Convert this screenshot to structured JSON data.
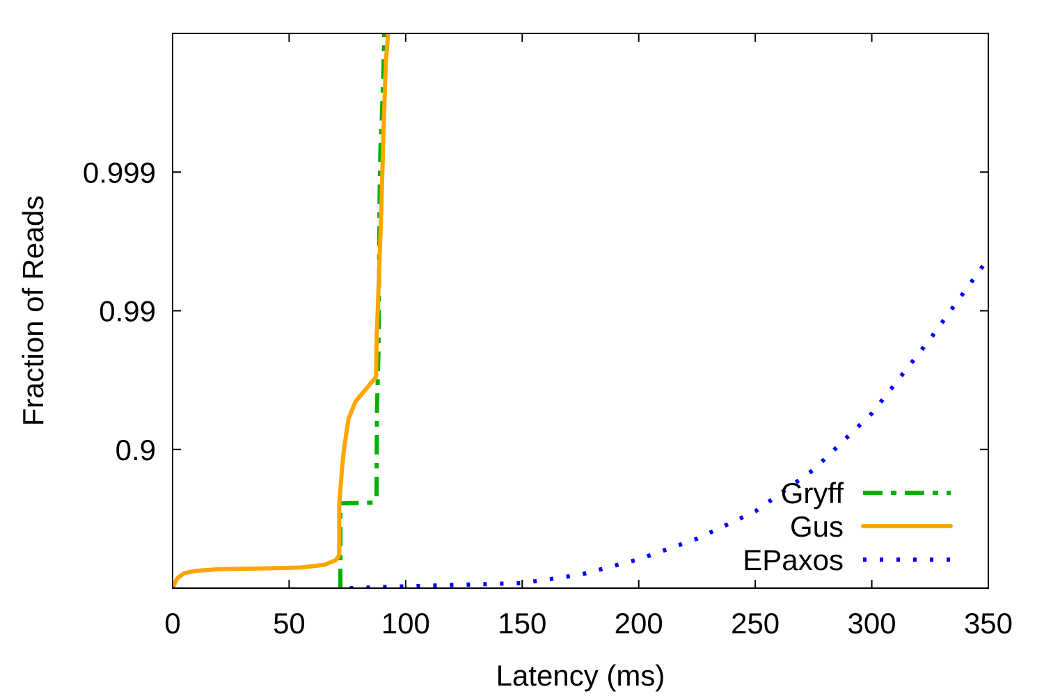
{
  "chart_data": {
    "type": "line",
    "xlabel": "Latency (ms)",
    "ylabel": "Fraction of Reads",
    "xlim": [
      0,
      350
    ],
    "y_scale": "log(1 - y) (tail CDF)",
    "ylim": [
      0.0,
      0.9999
    ],
    "x_ticks": [
      "0",
      "50",
      "100",
      "150",
      "200",
      "250",
      "300",
      "350"
    ],
    "y_ticks": [
      {
        "value": 0.9,
        "label": "0.9"
      },
      {
        "value": 0.99,
        "label": "0.99"
      },
      {
        "value": 0.999,
        "label": "0.999"
      }
    ],
    "grid": false,
    "legend_position": "bottom-right",
    "series": [
      {
        "name": "Gryff",
        "color": "#00b000",
        "style": "dash-dot",
        "points": [
          [
            72,
            0.0
          ],
          [
            72,
            0.5
          ],
          [
            72,
            0.755
          ],
          [
            86,
            0.758
          ],
          [
            87.5,
            0.77
          ],
          [
            87.6,
            0.9
          ],
          [
            87.7,
            0.95
          ],
          [
            88.3,
            0.98
          ],
          [
            88.5,
            0.99
          ],
          [
            88.8,
            0.9985
          ],
          [
            89,
            0.99905
          ],
          [
            89.2,
            0.99935
          ],
          [
            89.6,
            0.9995
          ],
          [
            90.5,
            0.99982
          ],
          [
            90.8,
            0.9999
          ]
        ]
      },
      {
        "name": "Gus",
        "color": "#ffa500",
        "style": "solid",
        "points": [
          [
            0,
            0.0
          ],
          [
            2,
            0.15
          ],
          [
            5,
            0.22
          ],
          [
            10,
            0.25
          ],
          [
            20,
            0.27
          ],
          [
            40,
            0.28
          ],
          [
            55,
            0.29
          ],
          [
            65,
            0.32
          ],
          [
            70,
            0.37
          ],
          [
            71.5,
            0.42
          ],
          [
            71.5,
            0.75
          ],
          [
            72.5,
            0.85
          ],
          [
            73.5,
            0.9
          ],
          [
            75.5,
            0.94
          ],
          [
            78.5,
            0.955
          ],
          [
            84,
            0.965
          ],
          [
            87.3,
            0.97
          ],
          [
            87.6,
            0.985
          ],
          [
            88,
            0.99
          ],
          [
            89.5,
            0.998
          ],
          [
            90,
            0.999
          ],
          [
            90.5,
            0.9995
          ],
          [
            91.5,
            0.99984
          ],
          [
            92.5,
            0.9999
          ]
        ]
      },
      {
        "name": "EPaxos",
        "color": "#0000ff",
        "style": "dotted",
        "points": [
          [
            76,
            0.0
          ],
          [
            100,
            0.03
          ],
          [
            150,
            0.08
          ],
          [
            175,
            0.2
          ],
          [
            200,
            0.38
          ],
          [
            225,
            0.56
          ],
          [
            250,
            0.72
          ],
          [
            275,
            0.86
          ],
          [
            300,
            0.945
          ],
          [
            325,
            0.984
          ],
          [
            350,
            0.9958
          ]
        ]
      }
    ]
  }
}
